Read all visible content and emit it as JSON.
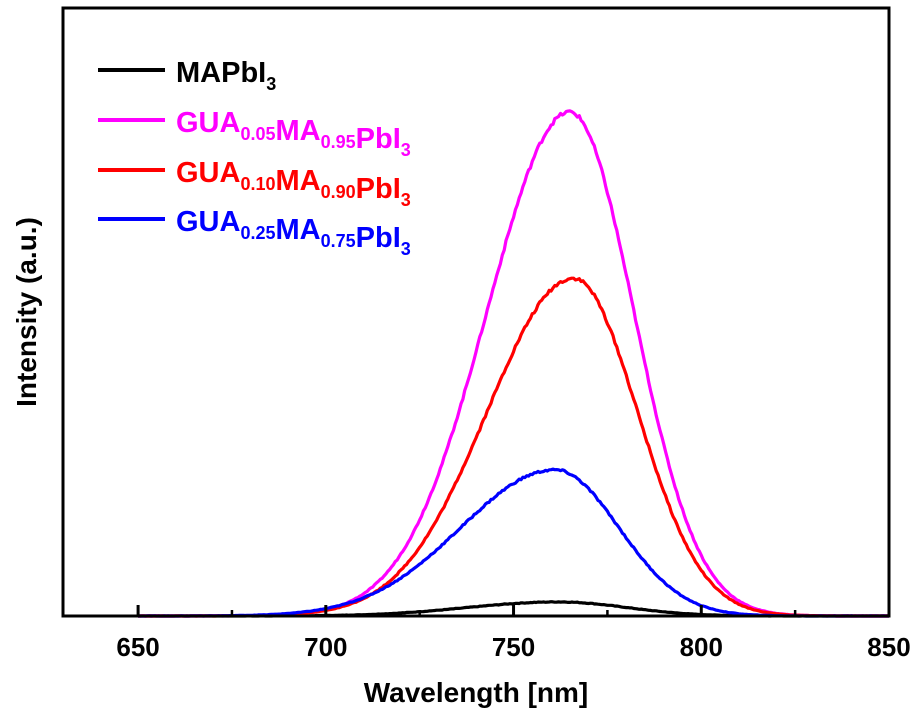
{
  "chart_data": {
    "type": "line",
    "xlabel": "Wavelength [nm]",
    "ylabel": "Intensity (a.u.)",
    "xlim": [
      630,
      850
    ],
    "ylim": [
      0,
      1.0
    ],
    "x_ticks": [
      "650",
      "700",
      "750",
      "800",
      "850"
    ],
    "y_tick_labels_shown": false,
    "grid": false,
    "legend_position": "top-left",
    "series": [
      {
        "name": "MAPbI3",
        "legend_parts": [
          {
            "t": "MAPbI",
            "sub": false
          },
          {
            "t": "3",
            "sub": true
          }
        ],
        "color": "#000000",
        "peak_x": 762,
        "peak_y": 0.028,
        "sigma_left": 24,
        "sigma_right": 18
      },
      {
        "name": "GUA0.05MA0.95PbI3",
        "legend_parts": [
          {
            "t": "GUA",
            "sub": false
          },
          {
            "t": "0.05",
            "sub": true
          },
          {
            "t": "MA",
            "sub": false
          },
          {
            "t": "0.95",
            "sub": true
          },
          {
            "t": "PbI",
            "sub": false
          },
          {
            "t": "3",
            "sub": true
          }
        ],
        "color": "#ff00ff",
        "peak_x": 765,
        "peak_y": 1.0,
        "sigma_left": 22,
        "sigma_right": 17
      },
      {
        "name": "GUA0.10MA0.90PbI3",
        "legend_parts": [
          {
            "t": "GUA",
            "sub": false
          },
          {
            "t": "0.10",
            "sub": true
          },
          {
            "t": "MA",
            "sub": false
          },
          {
            "t": "0.90",
            "sub": true
          },
          {
            "t": "PbI",
            "sub": false
          },
          {
            "t": "3",
            "sub": true
          }
        ],
        "color": "#ff0000",
        "peak_x": 766,
        "peak_y": 0.67,
        "sigma_left": 23,
        "sigma_right": 17
      },
      {
        "name": "GUA0.25MA0.75PbI3",
        "legend_parts": [
          {
            "t": "GUA",
            "sub": false
          },
          {
            "t": "0.25",
            "sub": true
          },
          {
            "t": "MA",
            "sub": false
          },
          {
            "t": "0.75",
            "sub": true
          },
          {
            "t": "PbI",
            "sub": false
          },
          {
            "t": "3",
            "sub": true
          }
        ],
        "color": "#0000ff",
        "peak_x": 761,
        "peak_y": 0.29,
        "sigma_left": 25,
        "sigma_right": 17
      }
    ]
  }
}
